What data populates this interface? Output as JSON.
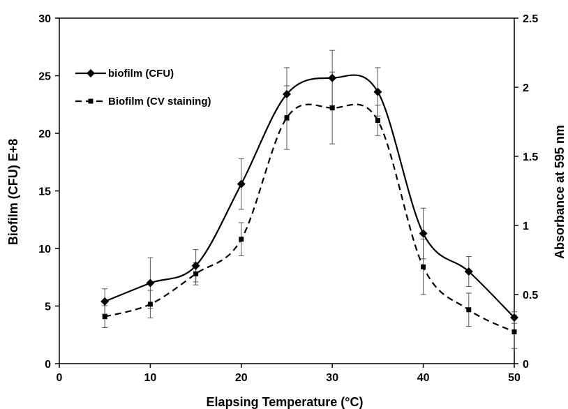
{
  "chart_data": {
    "type": "line",
    "title": "",
    "xlabel": "Elapsing Temperature (°C)",
    "ylabel": "Biofilm (CFU) E+8",
    "y2label": "Absorbance at 595 nm",
    "xlim": [
      0,
      50
    ],
    "ylim": [
      0,
      30
    ],
    "y2lim": [
      0,
      2.5
    ],
    "x_ticks": [
      "0",
      "10",
      "20",
      "30",
      "40",
      "50"
    ],
    "y_ticks": [
      "0",
      "5",
      "10",
      "15",
      "20",
      "25",
      "30"
    ],
    "y2_ticks": [
      "0",
      "0.5",
      "1",
      "1.5",
      "2",
      "2.5"
    ],
    "grid": false,
    "legend_position": "top-left",
    "series": [
      {
        "name": "biofilm (CFU)",
        "axis": "left",
        "style": "solid",
        "marker": "diamond",
        "x": [
          5,
          10,
          15,
          20,
          25,
          30,
          35,
          40,
          45,
          50
        ],
        "y": [
          5.4,
          7.0,
          8.5,
          15.6,
          23.4,
          24.8,
          23.6,
          11.3,
          8.0,
          4.0
        ],
        "error": [
          1.1,
          2.2,
          1.4,
          2.2,
          2.3,
          2.4,
          2.1,
          2.2,
          1.3,
          0.5
        ]
      },
      {
        "name": "Biofilm (CV staining)",
        "axis": "right",
        "style": "dashed",
        "marker": "square",
        "x": [
          5,
          10,
          15,
          20,
          25,
          30,
          35,
          40,
          45,
          50
        ],
        "y": [
          0.34,
          0.43,
          0.65,
          0.9,
          1.78,
          1.85,
          1.76,
          0.7,
          0.39,
          0.23
        ],
        "error": [
          0.08,
          0.1,
          0.08,
          0.12,
          0.23,
          0.26,
          0.11,
          0.2,
          0.12,
          0.12
        ]
      }
    ]
  }
}
